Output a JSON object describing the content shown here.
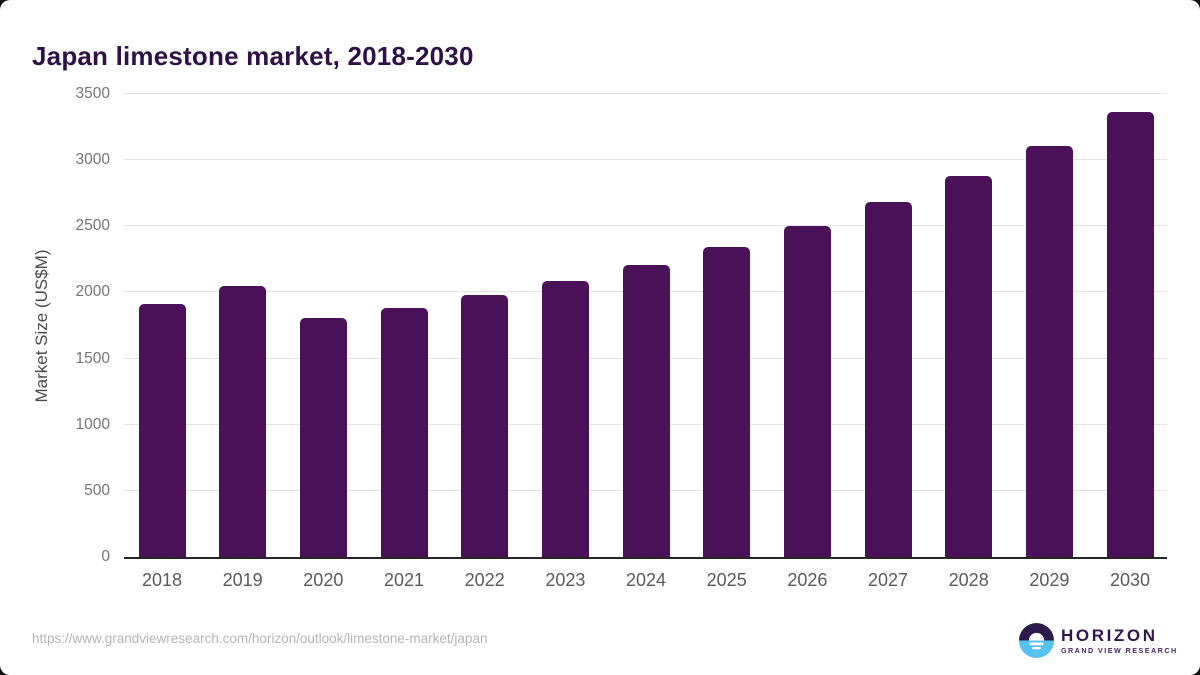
{
  "header": {
    "title": "Japan limestone market, 2018-2030"
  },
  "chart_data": {
    "type": "bar",
    "title": "Japan limestone market, 2018-2030",
    "categories": [
      "2018",
      "2019",
      "2020",
      "2021",
      "2022",
      "2023",
      "2024",
      "2025",
      "2026",
      "2027",
      "2028",
      "2029",
      "2030"
    ],
    "values": [
      1910,
      2050,
      1805,
      1885,
      1980,
      2090,
      2210,
      2345,
      2500,
      2680,
      2880,
      3110,
      3365
    ],
    "xlabel": "",
    "ylabel": "Market Size (US$M)",
    "ylim": [
      0,
      3500
    ],
    "yticks": [
      0,
      500,
      1000,
      1500,
      2000,
      2500,
      3000,
      3500
    ],
    "grid": true,
    "legend_position": "none",
    "bar_color": "#4a1159"
  },
  "colors": {
    "title": "#2f1047",
    "bar": "#4a1159",
    "axis_line": "#262626",
    "gridline": "#e4e4e4",
    "tick_label": "#757575",
    "x_label": "#5a5a5a",
    "y_title": "#4a4a4a",
    "footer_text": "#b5b5b5",
    "logo_dark": "#2b1a4a",
    "logo_blue": "#55c3f0",
    "logo_text": "#331550",
    "logo_sub": "#44246a"
  },
  "footer": {
    "source_url": "https://www.grandviewresearch.com/horizon/outlook/limestone-market/japan",
    "logo": {
      "brand": "HORIZON",
      "sub_brand": "GRAND VIEW RESEARCH"
    }
  }
}
